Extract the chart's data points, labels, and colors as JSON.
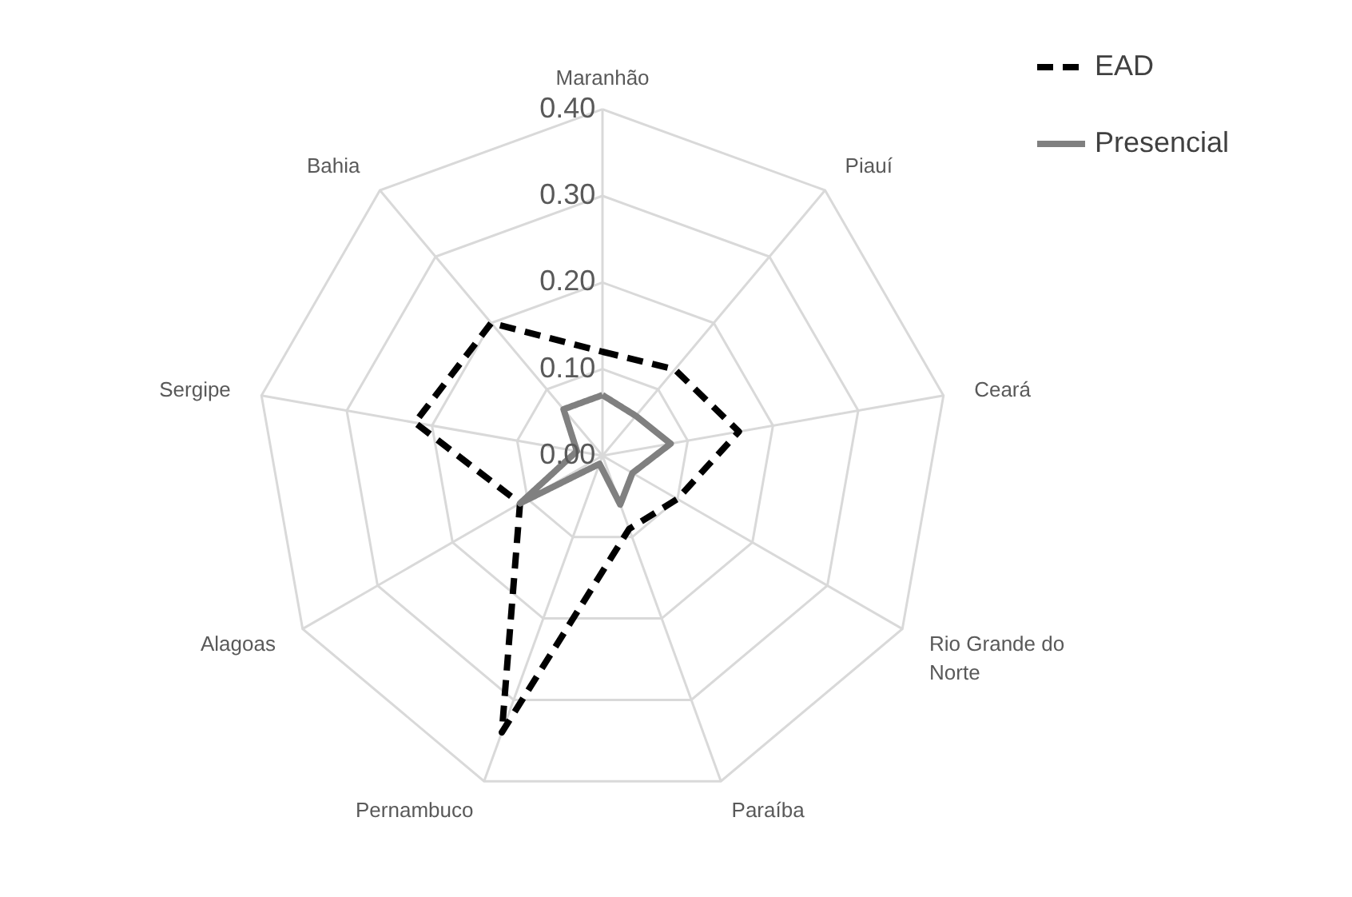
{
  "chart_data": {
    "type": "radar",
    "categories": [
      "Maranhão",
      "Piauí",
      "Ceará",
      "Rio Grande do Norte",
      "Paraíba",
      "Pernambuco",
      "Alagoas",
      "Sergipe",
      "Bahia"
    ],
    "series": [
      {
        "name": "EAD",
        "color": "#000000",
        "line_style": "dashed",
        "values": [
          0.12,
          0.13,
          0.16,
          0.1,
          0.09,
          0.34,
          0.11,
          0.22,
          0.2
        ]
      },
      {
        "name": "Presencial",
        "color": "#808080",
        "line_style": "solid",
        "values": [
          0.07,
          0.06,
          0.08,
          0.04,
          0.06,
          0.01,
          0.11,
          0.03,
          0.07
        ]
      }
    ],
    "ylim": [
      0,
      0.4
    ],
    "yticks": [
      {
        "value": 0,
        "label": "0.00"
      },
      {
        "value": 0.1,
        "label": "0.10"
      },
      {
        "value": 0.2,
        "label": "0.20"
      },
      {
        "value": 0.3,
        "label": "0.30"
      },
      {
        "value": 0.4,
        "label": "0.40"
      }
    ],
    "grid": true,
    "legend": "right",
    "marker": "none"
  }
}
